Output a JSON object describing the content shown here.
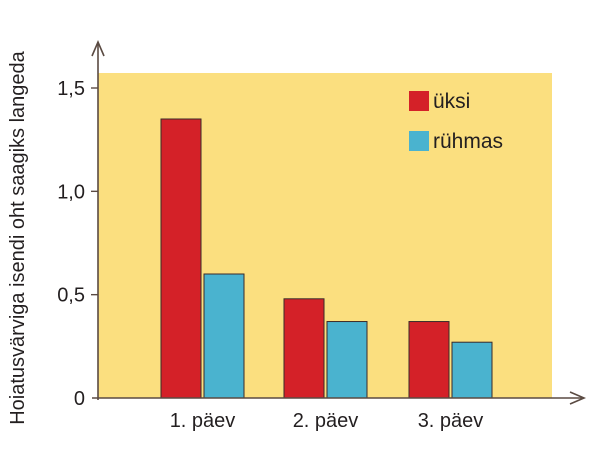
{
  "chart_data": {
    "type": "bar",
    "categories": [
      "1. päev",
      "2. päev",
      "3. päev"
    ],
    "series": [
      {
        "name": "üksi",
        "values": [
          1.35,
          0.48,
          0.37
        ],
        "color": "#d42128"
      },
      {
        "name": "rühmas",
        "values": [
          0.6,
          0.37,
          0.27
        ],
        "color": "#4ab3cf"
      }
    ],
    "title": "",
    "xlabel": "",
    "ylabel": "Hoiatusvärviga isendi oht saagiks langeda",
    "ylim": [
      0,
      1.5
    ],
    "yticks": [
      0,
      0.5,
      1.0,
      1.5
    ],
    "ytick_labels": [
      "0",
      "0,5",
      "1,0",
      "1,5"
    ],
    "grid": false,
    "legend_position": "top-right",
    "colors": {
      "plot_background": "#fbdf7f",
      "axis": "#5a4a42",
      "bar_outline": "#3a2a2a"
    }
  }
}
